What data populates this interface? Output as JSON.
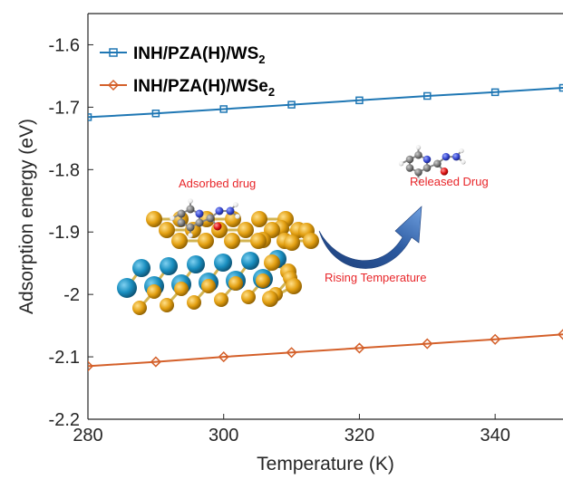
{
  "chart_data": {
    "type": "line",
    "xlabel": "Temperature (K)",
    "ylabel": "Adsorption energy (eV)",
    "xlim": [
      280,
      350
    ],
    "ylim": [
      -2.2,
      -1.55
    ],
    "xticks": [
      280,
      300,
      320,
      340
    ],
    "yticks": [
      -1.6,
      -1.7,
      -1.8,
      -1.9,
      -2,
      -2.1,
      -2.2
    ],
    "ytick_labels": [
      "-1.6",
      "-1.7",
      "-1.8",
      "-1.9",
      "-2",
      "-2.1",
      "-2.2"
    ],
    "legend_placement": "top-left",
    "grid": false,
    "series": [
      {
        "name": "INH/PZA(H)/WS",
        "name_subscript": "2",
        "color": "#1f77b4",
        "marker": "square",
        "x": [
          280,
          290,
          300,
          310,
          320,
          330,
          340,
          350
        ],
        "y": [
          -1.716,
          -1.71,
          -1.703,
          -1.696,
          -1.689,
          -1.682,
          -1.676,
          -1.669
        ]
      },
      {
        "name": "INH/PZA(H)/WSe",
        "name_subscript": "2",
        "color": "#d4602a",
        "marker": "diamond",
        "x": [
          280,
          290,
          300,
          310,
          320,
          330,
          340,
          350
        ],
        "y": [
          -2.115,
          -2.108,
          -2.1,
          -2.093,
          -2.086,
          -2.079,
          -2.072,
          -2.064
        ]
      }
    ],
    "annotations": [
      {
        "text": "Adsorbed drug",
        "color": "#e8262a"
      },
      {
        "text": "Released Drug",
        "color": "#e8262a"
      },
      {
        "text": "Rising Temperature",
        "color": "#e8262a"
      }
    ]
  },
  "colors": {
    "axis": "#262626",
    "arrow": "#2c5aa0",
    "tungsten": "#1a8fc0",
    "sulfur": "#e3a012",
    "carbon": "#777777",
    "nitrogen": "#3344cc",
    "oxygen": "#dd1111",
    "hydrogen": "#eeeeee"
  }
}
